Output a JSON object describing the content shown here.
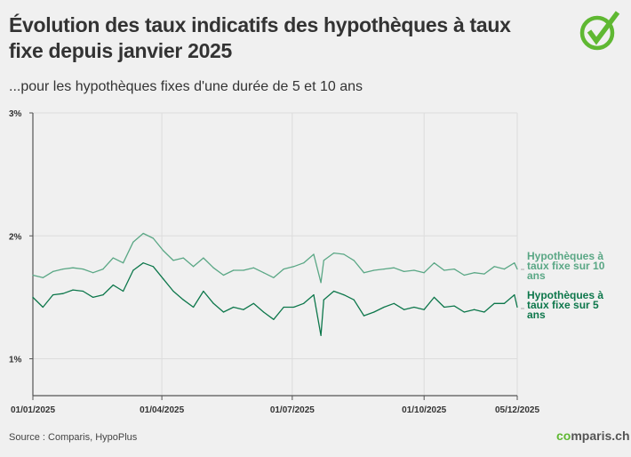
{
  "title": "Évolution des taux indicatifs des hypothèques à taux fixe depuis janvier 2025",
  "subtitle": "...pour les hypothèques fixes d'une durée de 5 et 10 ans",
  "source": "Source : Comparis, HypoPlus",
  "brand": {
    "prefix": "c",
    "rest": "mparis.ch"
  },
  "colors": {
    "ten_year": "#5aa785",
    "five_year": "#0d774b",
    "logo": "#5fb832"
  },
  "chart_data": {
    "type": "line",
    "title": "Évolution des taux indicatifs des hypothèques à taux fixe depuis janvier 2025",
    "xlabel": "",
    "ylabel": "",
    "xlim": [
      "2025-01-01",
      "2025-12-05"
    ],
    "ylim": [
      0.7,
      3.0
    ],
    "grid": true,
    "legend": "right",
    "yticks": [
      {
        "v": 3,
        "label": "3%"
      },
      {
        "v": 2,
        "label": "2%"
      },
      {
        "v": 1,
        "label": "1%"
      }
    ],
    "xticks": [
      {
        "d": "2025-01-01",
        "label": "01/01/2025"
      },
      {
        "d": "2025-04-01",
        "label": "01/04/2025"
      },
      {
        "d": "2025-07-01",
        "label": "01/07/2025"
      },
      {
        "d": "2025-10-01",
        "label": "01/10/2025"
      },
      {
        "d": "2025-12-05",
        "label": "05/12/2025"
      }
    ],
    "x": [
      "2025-01-01",
      "2025-01-08",
      "2025-01-15",
      "2025-01-22",
      "2025-01-29",
      "2025-02-05",
      "2025-02-12",
      "2025-02-19",
      "2025-02-26",
      "2025-03-05",
      "2025-03-12",
      "2025-03-19",
      "2025-03-26",
      "2025-04-02",
      "2025-04-09",
      "2025-04-16",
      "2025-04-23",
      "2025-04-30",
      "2025-05-07",
      "2025-05-14",
      "2025-05-21",
      "2025-05-28",
      "2025-06-04",
      "2025-06-11",
      "2025-06-18",
      "2025-06-25",
      "2025-07-02",
      "2025-07-09",
      "2025-07-16",
      "2025-07-21",
      "2025-07-23",
      "2025-07-30",
      "2025-08-06",
      "2025-08-13",
      "2025-08-20",
      "2025-08-27",
      "2025-09-03",
      "2025-09-10",
      "2025-09-17",
      "2025-09-24",
      "2025-10-01",
      "2025-10-08",
      "2025-10-15",
      "2025-10-22",
      "2025-10-29",
      "2025-11-05",
      "2025-11-12",
      "2025-11-19",
      "2025-11-26",
      "2025-12-03",
      "2025-12-05"
    ],
    "series": [
      {
        "name": "Hypothèques à taux fixe sur 10 ans",
        "label_lines": [
          "Hypothèques à",
          "taux fixe sur 10",
          "ans"
        ],
        "values": [
          1.68,
          1.66,
          1.71,
          1.73,
          1.74,
          1.73,
          1.7,
          1.73,
          1.82,
          1.78,
          1.95,
          2.02,
          1.98,
          1.88,
          1.8,
          1.82,
          1.75,
          1.82,
          1.74,
          1.68,
          1.72,
          1.72,
          1.74,
          1.7,
          1.66,
          1.73,
          1.75,
          1.78,
          1.85,
          1.62,
          1.8,
          1.86,
          1.85,
          1.8,
          1.7,
          1.72,
          1.73,
          1.74,
          1.71,
          1.72,
          1.7,
          1.78,
          1.72,
          1.73,
          1.68,
          1.7,
          1.69,
          1.75,
          1.73,
          1.78,
          1.73
        ]
      },
      {
        "name": "Hypothèques à taux fixe sur 5 ans",
        "label_lines": [
          "Hypothèques à",
          "taux fixe sur 5",
          "ans"
        ],
        "values": [
          1.5,
          1.42,
          1.52,
          1.53,
          1.56,
          1.55,
          1.5,
          1.52,
          1.6,
          1.55,
          1.72,
          1.78,
          1.75,
          1.65,
          1.55,
          1.48,
          1.42,
          1.55,
          1.45,
          1.38,
          1.42,
          1.4,
          1.45,
          1.38,
          1.32,
          1.42,
          1.42,
          1.45,
          1.52,
          1.19,
          1.48,
          1.55,
          1.52,
          1.48,
          1.35,
          1.38,
          1.42,
          1.45,
          1.4,
          1.42,
          1.4,
          1.5,
          1.42,
          1.43,
          1.38,
          1.4,
          1.38,
          1.45,
          1.45,
          1.52,
          1.42
        ]
      }
    ]
  }
}
